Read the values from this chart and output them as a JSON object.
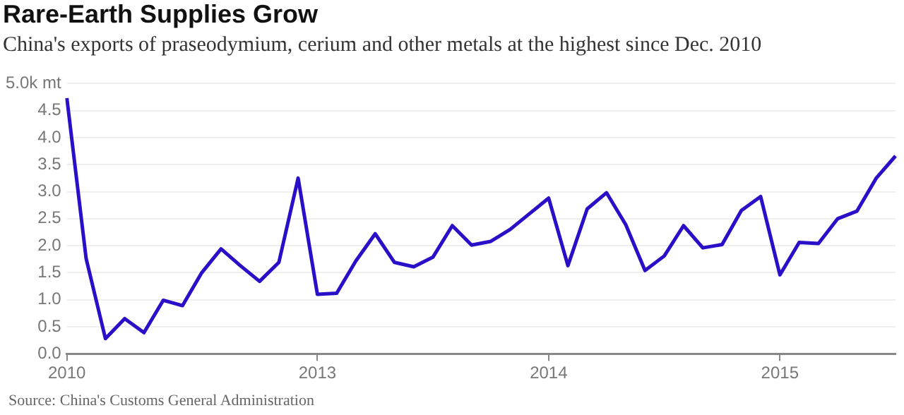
{
  "chart_data": {
    "type": "line",
    "title": "Rare-Earth Supplies Grow",
    "subtitle": "China's exports of praseodymium, cerium and other metals at the highest since Dec. 2010",
    "categories": [
      "2010",
      null,
      null,
      null,
      null,
      null,
      null,
      null,
      null,
      null,
      null,
      null,
      null,
      "2013",
      null,
      null,
      null,
      null,
      null,
      null,
      null,
      null,
      null,
      null,
      null,
      "2014",
      null,
      null,
      null,
      null,
      null,
      null,
      null,
      null,
      null,
      null,
      null,
      "2015",
      null,
      null,
      null,
      null,
      null,
      null
    ],
    "series": [
      {
        "color": "#2a0fc8",
        "values": [
          4.73,
          1.76,
          0.28,
          0.65,
          0.39,
          0.99,
          0.89,
          1.5,
          1.94,
          1.63,
          1.34,
          1.69,
          3.25,
          1.1,
          1.12,
          1.72,
          2.22,
          1.69,
          1.61,
          1.79,
          2.37,
          2.01,
          2.08,
          2.3,
          2.59,
          2.88,
          1.63,
          2.68,
          2.98,
          2.39,
          1.54,
          1.81,
          2.37,
          1.96,
          2.02,
          2.65,
          2.91,
          1.46,
          2.06,
          2.04,
          2.5,
          2.64,
          3.25,
          3.66
        ]
      }
    ],
    "ylim": [
      0,
      5
    ],
    "yticks": [
      {
        "value": 0,
        "label": "0.0"
      },
      0.5,
      {
        "value": 1,
        "label": "1.0"
      },
      1.5,
      {
        "value": 2,
        "label": "2.0"
      },
      2.5,
      {
        "value": 3,
        "label": "3.0"
      },
      3.5,
      {
        "value": 4,
        "label": "4.0"
      },
      4.5,
      {
        "value": 5,
        "label": "5.0k mt"
      }
    ],
    "grid": "y",
    "legend": false,
    "marker": "none",
    "line_style": "solid",
    "annotations": [
      "Source: China's Customs General Administration"
    ]
  }
}
